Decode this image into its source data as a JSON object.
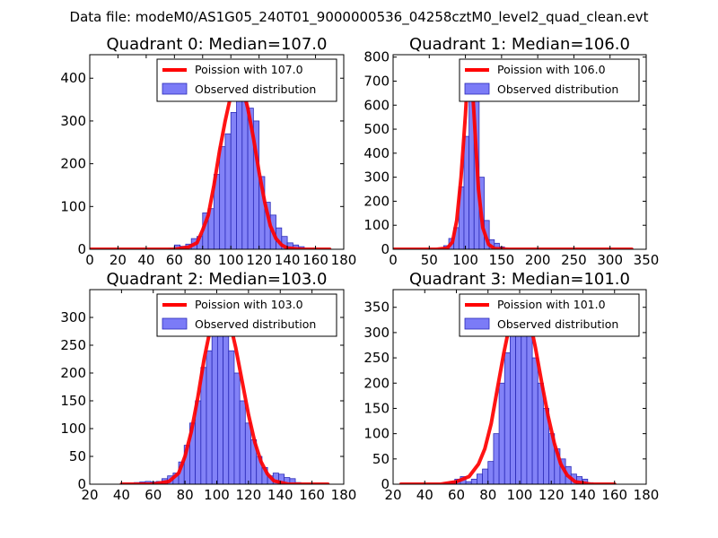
{
  "suptitle": "Data file: modeM0/AS1G05_240T01_9000000536_04258cztM0_level2_quad_clean.evt",
  "colors": {
    "bar_fill": "#7b7bf7",
    "bar_edge": "#2b2bb8",
    "curve": "#ff0000",
    "legend_edge": "#000000"
  },
  "chart_data": [
    {
      "type": "bar",
      "title": "Quadrant 0: Median=107.0",
      "xlabel": "",
      "ylabel": "",
      "xlim": [
        0,
        180
      ],
      "ylim": [
        0,
        455
      ],
      "xticks": [
        0,
        20,
        40,
        60,
        80,
        100,
        120,
        140,
        160,
        180
      ],
      "yticks": [
        0,
        100,
        200,
        300,
        400
      ],
      "legend": {
        "position": "top-right",
        "entries": [
          "Poission with 107.0",
          "Observed distribution"
        ]
      },
      "bin_width": 4,
      "bin_starts": [
        0,
        4,
        8,
        12,
        16,
        20,
        24,
        28,
        32,
        36,
        40,
        44,
        48,
        52,
        56,
        60,
        64,
        68,
        72,
        76,
        80,
        84,
        88,
        92,
        96,
        100,
        104,
        108,
        112,
        116,
        120,
        124,
        128,
        132,
        136,
        140,
        144,
        148,
        152,
        156,
        160,
        164,
        168
      ],
      "values": [
        0,
        0,
        0,
        0,
        0,
        0,
        0,
        0,
        0,
        0,
        0,
        0,
        0,
        0,
        2,
        10,
        7,
        12,
        25,
        30,
        85,
        95,
        175,
        240,
        270,
        320,
        360,
        400,
        330,
        300,
        170,
        110,
        80,
        50,
        30,
        15,
        10,
        6,
        2,
        1,
        0,
        0,
        0
      ],
      "series": [
        {
          "name": "Poission with 107.0",
          "x": [
            0,
            40,
            60,
            70,
            76,
            80,
            84,
            88,
            92,
            96,
            100,
            104,
            108,
            112,
            116,
            120,
            124,
            128,
            132,
            136,
            140,
            150,
            170
          ],
          "y": [
            0,
            0,
            0,
            5,
            15,
            45,
            80,
            150,
            230,
            300,
            360,
            400,
            380,
            330,
            260,
            180,
            110,
            55,
            25,
            10,
            3,
            0,
            0
          ]
        }
      ]
    },
    {
      "type": "bar",
      "title": "Quadrant 1: Median=106.0",
      "xlabel": "",
      "ylabel": "",
      "xlim": [
        0,
        350
      ],
      "ylim": [
        0,
        810
      ],
      "xticks": [
        0,
        50,
        100,
        150,
        200,
        250,
        300,
        350
      ],
      "yticks": [
        0,
        100,
        200,
        300,
        400,
        500,
        600,
        700,
        800
      ],
      "legend": {
        "position": "top-right",
        "entries": [
          "Poission with 106.0",
          "Observed distribution"
        ]
      },
      "bin_width": 7,
      "bin_starts": [
        63,
        70,
        77,
        84,
        91,
        98,
        105,
        112,
        119,
        126,
        133,
        140,
        147
      ],
      "values": [
        5,
        15,
        45,
        90,
        260,
        470,
        720,
        690,
        300,
        120,
        40,
        25,
        10
      ],
      "series": [
        {
          "name": "Poission with 106.0",
          "x": [
            0,
            60,
            75,
            82,
            88,
            94,
            100,
            104,
            108,
            112,
            118,
            124,
            132,
            140,
            160,
            330
          ],
          "y": [
            0,
            0,
            5,
            30,
            120,
            300,
            560,
            770,
            760,
            560,
            250,
            90,
            20,
            3,
            0,
            0
          ]
        }
      ]
    },
    {
      "type": "bar",
      "title": "Quadrant 2: Median=103.0",
      "xlabel": "",
      "ylabel": "",
      "xlim": [
        20,
        180
      ],
      "ylim": [
        0,
        350
      ],
      "xticks": [
        20,
        40,
        60,
        80,
        100,
        120,
        140,
        160,
        180
      ],
      "yticks": [
        0,
        50,
        100,
        150,
        200,
        250,
        300
      ],
      "legend": {
        "position": "top-right",
        "entries": [
          "Poission with 103.0",
          "Observed distribution"
        ]
      },
      "bin_width": 3.5,
      "bin_starts": [
        41,
        44.5,
        48,
        51.5,
        55,
        58.5,
        62,
        65.5,
        69,
        72.5,
        76,
        79.5,
        83,
        86.5,
        90,
        93.5,
        97,
        100.5,
        104,
        107.5,
        111,
        114.5,
        118,
        121.5,
        125,
        128.5,
        132,
        135.5,
        139,
        142.5,
        146,
        149.5
      ],
      "values": [
        2,
        2,
        3,
        4,
        5,
        4,
        5,
        10,
        15,
        20,
        40,
        70,
        110,
        150,
        210,
        240,
        310,
        330,
        310,
        240,
        200,
        150,
        110,
        80,
        50,
        30,
        15,
        20,
        18,
        12,
        10,
        3
      ],
      "series": [
        {
          "name": "Poission with 103.0",
          "x": [
            40,
            60,
            70,
            76,
            80,
            84,
            88,
            92,
            96,
            100,
            104,
            108,
            112,
            116,
            120,
            124,
            128,
            132,
            136,
            145,
            170
          ],
          "y": [
            0,
            0,
            5,
            20,
            50,
            95,
            155,
            225,
            280,
            315,
            320,
            295,
            245,
            185,
            125,
            75,
            40,
            18,
            6,
            0,
            0
          ]
        }
      ]
    },
    {
      "type": "bar",
      "title": "Quadrant 3: Median=101.0",
      "xlabel": "",
      "ylabel": "",
      "xlim": [
        20,
        180
      ],
      "ylim": [
        0,
        385
      ],
      "xticks": [
        20,
        40,
        60,
        80,
        100,
        120,
        140,
        160,
        180
      ],
      "yticks": [
        0,
        50,
        100,
        150,
        200,
        250,
        300,
        350
      ],
      "legend": {
        "position": "top-right",
        "entries": [
          "Poission with 101.0",
          "Observed distribution"
        ]
      },
      "bin_width": 3.5,
      "bin_starts": [
        52,
        55.5,
        59,
        62.5,
        66,
        69.5,
        73,
        76.5,
        80,
        83.5,
        87,
        90.5,
        94,
        97.5,
        101,
        104.5,
        108,
        111.5,
        115,
        118.5,
        122,
        125.5,
        129,
        132.5,
        136,
        139.5,
        143
      ],
      "values": [
        3,
        5,
        10,
        15,
        5,
        10,
        20,
        30,
        45,
        100,
        200,
        260,
        330,
        370,
        350,
        300,
        250,
        200,
        150,
        100,
        70,
        50,
        35,
        20,
        15,
        10,
        3
      ],
      "series": [
        {
          "name": "Poission with 101.0",
          "x": [
            25,
            50,
            60,
            68,
            74,
            78,
            82,
            86,
            90,
            94,
            98,
            102,
            106,
            110,
            114,
            118,
            122,
            126,
            130,
            135,
            145,
            160
          ],
          "y": [
            0,
            0,
            5,
            15,
            40,
            70,
            120,
            190,
            260,
            320,
            355,
            360,
            330,
            270,
            200,
            135,
            80,
            40,
            18,
            5,
            0,
            0
          ]
        }
      ]
    }
  ]
}
